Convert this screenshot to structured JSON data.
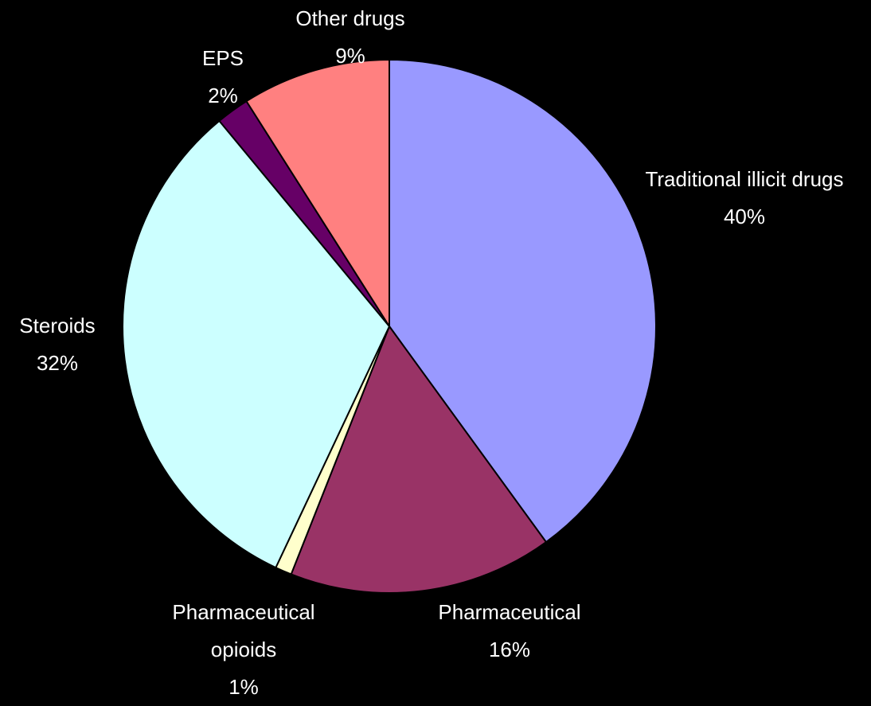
{
  "chart_data": {
    "type": "pie",
    "title": "",
    "slices": [
      {
        "label": "Traditional illicit drugs",
        "value": 40,
        "display_value": "40%",
        "color": "#9999ff"
      },
      {
        "label": "Pharmaceutical",
        "value": 16,
        "display_value": "16%",
        "color": "#993366"
      },
      {
        "label": "Pharmaceutical opioids",
        "label_lines": [
          "Pharmaceutical",
          "opioids"
        ],
        "value": 1,
        "display_value": "1%",
        "color": "#ffffcc"
      },
      {
        "label": "Steroids",
        "value": 32,
        "display_value": "32%",
        "color": "#ccffff"
      },
      {
        "label": "EPS",
        "value": 2,
        "display_value": "2%",
        "color": "#660066"
      },
      {
        "label": "Other drugs",
        "value": 9,
        "display_value": "9%",
        "color": "#ff8080"
      }
    ],
    "start_angle": "12 o'clock",
    "direction": "clockwise",
    "legend": "none (data labels outside slices)"
  },
  "colors": {
    "background": "#000000",
    "label_text": "#ffffff",
    "slice_border": "#000000"
  }
}
